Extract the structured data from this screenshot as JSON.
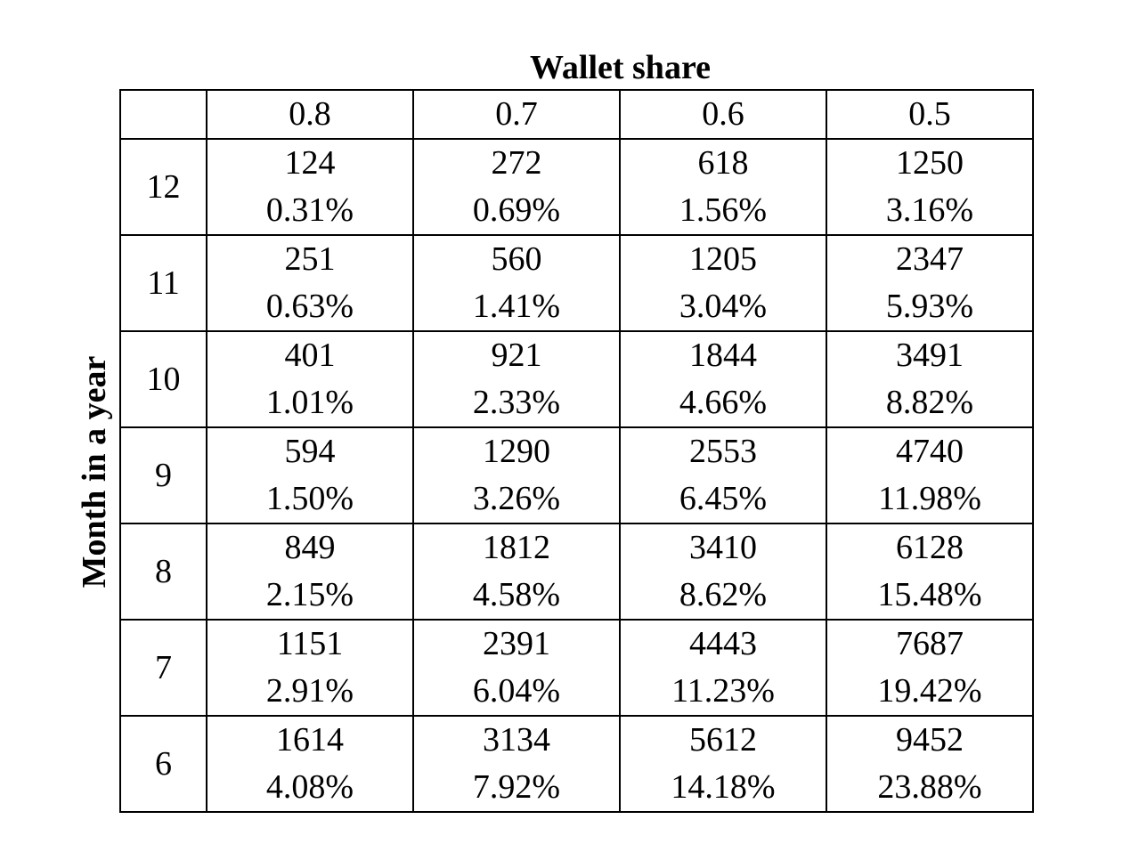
{
  "column_axis_title": "Wallet share",
  "row_axis_title": "Month in a year",
  "column_headers": [
    "0.8",
    "0.7",
    "0.6",
    "0.5"
  ],
  "rows": [
    {
      "month": "12",
      "cells": [
        {
          "count": "124",
          "pct": "0.31%"
        },
        {
          "count": "272",
          "pct": "0.69%"
        },
        {
          "count": "618",
          "pct": "1.56%"
        },
        {
          "count": "1250",
          "pct": "3.16%"
        }
      ]
    },
    {
      "month": "11",
      "cells": [
        {
          "count": "251",
          "pct": "0.63%"
        },
        {
          "count": "560",
          "pct": "1.41%"
        },
        {
          "count": "1205",
          "pct": "3.04%"
        },
        {
          "count": "2347",
          "pct": "5.93%"
        }
      ]
    },
    {
      "month": "10",
      "cells": [
        {
          "count": "401",
          "pct": "1.01%"
        },
        {
          "count": "921",
          "pct": "2.33%"
        },
        {
          "count": "1844",
          "pct": "4.66%"
        },
        {
          "count": "3491",
          "pct": "8.82%"
        }
      ]
    },
    {
      "month": "9",
      "cells": [
        {
          "count": "594",
          "pct": "1.50%"
        },
        {
          "count": "1290",
          "pct": "3.26%"
        },
        {
          "count": "2553",
          "pct": "6.45%"
        },
        {
          "count": "4740",
          "pct": "11.98%"
        }
      ]
    },
    {
      "month": "8",
      "cells": [
        {
          "count": "849",
          "pct": "2.15%"
        },
        {
          "count": "1812",
          "pct": "4.58%"
        },
        {
          "count": "3410",
          "pct": "8.62%"
        },
        {
          "count": "6128",
          "pct": "15.48%"
        }
      ]
    },
    {
      "month": "7",
      "cells": [
        {
          "count": "1151",
          "pct": "2.91%"
        },
        {
          "count": "2391",
          "pct": "6.04%"
        },
        {
          "count": "4443",
          "pct": "11.23%"
        },
        {
          "count": "7687",
          "pct": "19.42%"
        }
      ]
    },
    {
      "month": "6",
      "cells": [
        {
          "count": "1614",
          "pct": "4.08%"
        },
        {
          "count": "3134",
          "pct": "7.92%"
        },
        {
          "count": "5612",
          "pct": "14.18%"
        },
        {
          "count": "9452",
          "pct": "23.88%"
        }
      ]
    }
  ]
}
